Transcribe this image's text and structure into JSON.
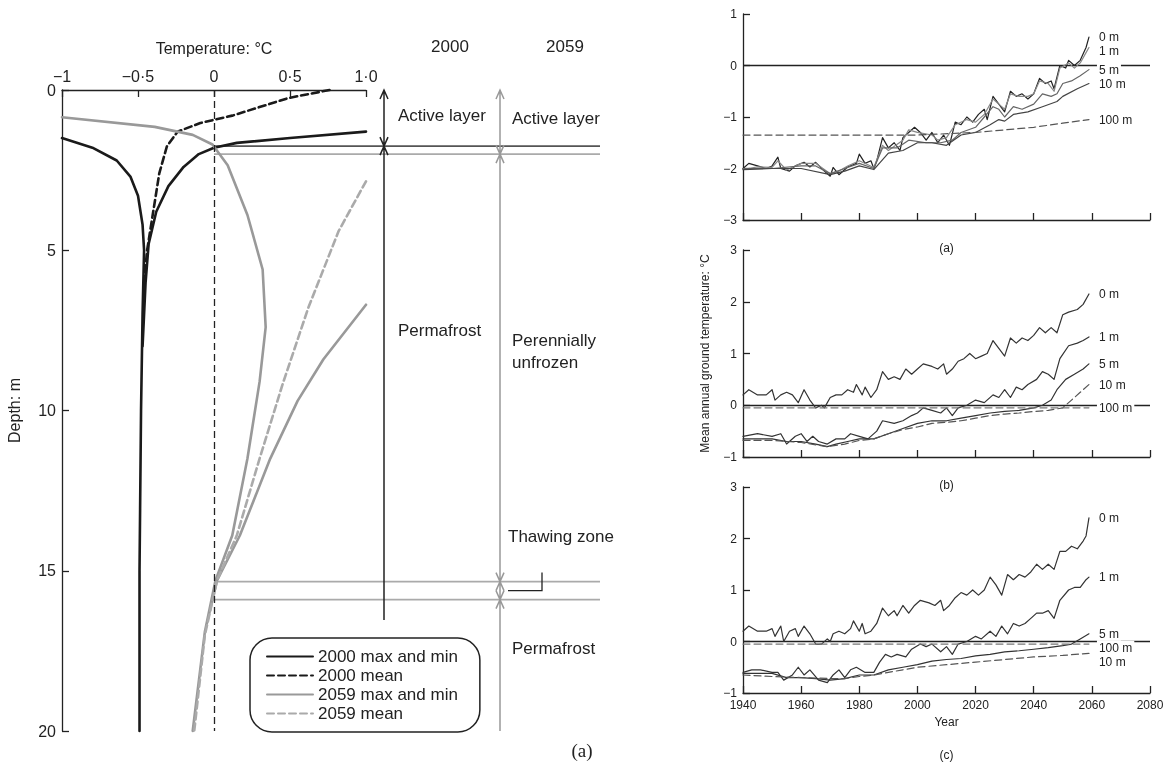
{
  "chart_data": [
    {
      "type": "line",
      "xlabel": "Temperature: °C",
      "ylabel": "Depth: m",
      "xlim": [
        -1,
        1
      ],
      "xticks": [
        {
          "value": -1,
          "label": "−1"
        },
        {
          "value": -0.5,
          "label": "−0·5"
        },
        0,
        {
          "value": 0.5,
          "label": "0·5"
        },
        {
          "value": 1,
          "label": "1·0"
        }
      ],
      "ylim": [
        20,
        0
      ],
      "yticks": [
        0,
        5,
        10,
        15,
        20
      ],
      "grid": false,
      "legend": "bottom right",
      "marker": "none",
      "series": [
        {
          "name": "2000 max and min",
          "color": "#1a1a1a",
          "line_style": "solid",
          "x": [
            -1,
            -0.8,
            -0.64,
            -0.55,
            -0.5,
            -0.47,
            -0.46,
            -0.47,
            -0.48,
            -0.49,
            -0.49,
            null,
            1,
            0.5,
            0.15,
            0,
            -0.1,
            -0.2,
            -0.3,
            -0.38,
            -0.43,
            -0.45,
            -0.47
          ],
          "values": [
            1.5,
            1.8,
            2.2,
            2.7,
            3.3,
            4.2,
            5,
            7,
            10,
            15,
            20,
            null,
            1.3,
            1.5,
            1.65,
            1.8,
            2.0,
            2.4,
            3.0,
            3.8,
            4.8,
            6,
            8
          ]
        },
        {
          "name": "2000 mean",
          "color": "#1a1a1a",
          "line_style": "dashed",
          "x": [
            0.76,
            0.49,
            0.12,
            -0.09,
            -0.24,
            -0.31,
            -0.36,
            -0.4,
            -0.44,
            -0.46
          ],
          "values": [
            0,
            0.25,
            0.8,
            1.03,
            1.3,
            1.76,
            2.6,
            3.8,
            5,
            6
          ]
        },
        {
          "name": "2059 max and min",
          "color": "#999999",
          "line_style": "solid",
          "x": [
            -1,
            -0.39,
            -0.14,
            -0.01,
            0.09,
            0.22,
            0.32,
            0.34,
            0.3,
            0.22,
            0.12,
            0.01,
            -0.06,
            -0.14,
            null,
            1,
            0.72,
            0.55,
            0.37,
            0.17,
            0.02,
            -0.06,
            -0.14
          ],
          "values": [
            0.85,
            1.15,
            1.4,
            1.7,
            2.35,
            3.9,
            5.6,
            7.4,
            9.1,
            11.5,
            13.9,
            15.3,
            16.9,
            20,
            null,
            6.7,
            8.4,
            9.7,
            11.5,
            13.9,
            15.3,
            16.9,
            20
          ]
        },
        {
          "name": "2059 mean",
          "color": "#aaaaaa",
          "line_style": "dashed",
          "x": [
            1,
            0.82,
            0.62,
            0.45,
            0.3,
            0.15,
            0.02,
            -0.06,
            -0.13
          ],
          "values": [
            2.85,
            4.4,
            6.8,
            9.2,
            11.5,
            13.9,
            15.3,
            17,
            20
          ]
        }
      ],
      "ref_lines": [
        {
          "axis": "x",
          "value": 0,
          "color": "#222222",
          "line_style": "dashed"
        },
        {
          "axis": "y",
          "value": 1.75,
          "color": "#555555"
        },
        {
          "axis": "y",
          "value": 2.0,
          "color": "#aaaaaa"
        },
        {
          "axis": "y",
          "value": 15.34,
          "color": "#aaaaaa"
        },
        {
          "axis": "y",
          "value": 15.9,
          "color": "#aaaaaa"
        }
      ],
      "annotations": [
        "2000",
        "2059",
        "Active layer",
        "Active layer",
        "Permafrost",
        "Perennially unfrozen",
        "Thawing zone",
        "Permafrost",
        "(a)"
      ]
    },
    {
      "type": "line",
      "xlim": [
        1940,
        2080
      ],
      "xticks": [
        1940,
        1960,
        1980,
        2000,
        2020,
        2040,
        2060,
        2080
      ],
      "ylim": [
        -3,
        1
      ],
      "yticks": [
        {
          "value": -3,
          "label": "−3"
        },
        {
          "value": -2,
          "label": "−2"
        },
        {
          "value": -1,
          "label": "−1"
        },
        0,
        1
      ],
      "tick_labels": "y",
      "grid": false,
      "marker": "none",
      "series": [
        {
          "name": "0 m",
          "color": "#222222",
          "line_style": "solid",
          "x": [
            1940,
            1942,
            1945,
            1948,
            1950,
            1952,
            1953,
            1956,
            1958,
            1961,
            1963,
            1965,
            1968,
            1970,
            1971,
            1973,
            1976,
            1979,
            1980,
            1982,
            1984,
            1985,
            1986,
            1988,
            1990,
            1992,
            1994,
            1995,
            1997,
            1999,
            2001,
            2003,
            2005,
            2007,
            2009,
            2011,
            2013,
            2015,
            2017,
            2019,
            2021,
            2023,
            2024,
            2026,
            2028,
            2030,
            2032,
            2034,
            2036,
            2038,
            2040,
            2042,
            2044,
            2046,
            2047,
            2049,
            2051,
            2052,
            2054,
            2056,
            2058,
            2059
          ],
          "values": [
            -2.0,
            -1.9,
            -1.95,
            -2.0,
            -1.95,
            -1.78,
            -2.0,
            -2.05,
            -1.95,
            -1.88,
            -1.97,
            -1.88,
            -2.05,
            -2.15,
            -1.98,
            -2.12,
            -1.97,
            -1.9,
            -1.72,
            -1.9,
            -1.85,
            -2.0,
            -1.85,
            -1.4,
            -1.6,
            -1.5,
            -1.65,
            -1.4,
            -1.3,
            -1.2,
            -1.3,
            -1.45,
            -1.3,
            -1.5,
            -1.35,
            -1.55,
            -1.1,
            -1.15,
            -1.0,
            -1.1,
            -0.95,
            -0.85,
            -1.05,
            -0.6,
            -0.75,
            -0.9,
            -0.5,
            -0.6,
            -0.55,
            -0.65,
            -0.55,
            -0.25,
            -0.35,
            -0.3,
            -0.45,
            0.0,
            -0.05,
            0.1,
            0.0,
            0.1,
            0.35,
            0.55
          ]
        },
        {
          "name": "1 m",
          "color": "#888888",
          "line_style": "solid",
          "x": [
            1940,
            1945,
            1950,
            1952,
            1955,
            1960,
            1965,
            1970,
            1973,
            1976,
            1980,
            1985,
            1988,
            1990,
            1995,
            1997,
            2000,
            2005,
            2007,
            2010,
            2013,
            2017,
            2020,
            2023,
            2026,
            2028,
            2030,
            2032,
            2035,
            2038,
            2040,
            2042,
            2045,
            2047,
            2049,
            2052,
            2054,
            2056,
            2058,
            2059
          ],
          "values": [
            -2.02,
            -1.97,
            -1.98,
            -1.85,
            -2.03,
            -1.9,
            -1.9,
            -2.1,
            -2.05,
            -1.95,
            -1.85,
            -1.98,
            -1.55,
            -1.65,
            -1.45,
            -1.25,
            -1.3,
            -1.35,
            -1.45,
            -1.4,
            -1.15,
            -1.05,
            -1.1,
            -0.95,
            -0.65,
            -0.75,
            -0.85,
            -0.55,
            -0.6,
            -0.6,
            -0.55,
            -0.3,
            -0.35,
            -0.5,
            -0.05,
            0.05,
            -0.05,
            0.05,
            0.25,
            0.35
          ]
        },
        {
          "name": "5 m",
          "color": "#666666",
          "line_style": "solid",
          "x": [
            1940,
            1950,
            1960,
            1965,
            1970,
            1975,
            1980,
            1985,
            1988,
            1993,
            1997,
            2003,
            2008,
            2012,
            2015,
            2020,
            2023,
            2026,
            2028,
            2030,
            2033,
            2036,
            2040,
            2043,
            2046,
            2048,
            2050,
            2053,
            2056,
            2059
          ],
          "values": [
            -2.0,
            -2.0,
            -1.95,
            -1.95,
            -2.1,
            -2.0,
            -1.9,
            -2.0,
            -1.6,
            -1.6,
            -1.45,
            -1.5,
            -1.5,
            -1.45,
            -1.3,
            -1.2,
            -1.0,
            -0.8,
            -0.85,
            -1.0,
            -0.8,
            -0.85,
            -0.75,
            -0.55,
            -0.6,
            -0.55,
            -0.35,
            -0.3,
            -0.2,
            -0.08
          ]
        },
        {
          "name": "10 m",
          "color": "#444444",
          "line_style": "solid",
          "x": [
            1940,
            1950,
            1960,
            1970,
            1975,
            1980,
            1985,
            1990,
            1995,
            2000,
            2005,
            2010,
            2015,
            2020,
            2025,
            2028,
            2030,
            2033,
            2038,
            2043,
            2048,
            2050,
            2055,
            2059
          ],
          "values": [
            -2.02,
            -2.0,
            -2.0,
            -2.12,
            -2.05,
            -1.95,
            -2.02,
            -1.7,
            -1.65,
            -1.5,
            -1.5,
            -1.55,
            -1.35,
            -1.3,
            -1.15,
            -1.05,
            -1.08,
            -0.95,
            -0.9,
            -0.8,
            -0.7,
            -0.6,
            -0.45,
            -0.35
          ]
        },
        {
          "name": "100 m",
          "color": "#555555",
          "line_style": "dashed",
          "x": [
            1940,
            1960,
            1980,
            2000,
            2020,
            2030,
            2040,
            2050,
            2059
          ],
          "values": [
            -1.35,
            -1.35,
            -1.35,
            -1.35,
            -1.3,
            -1.25,
            -1.2,
            -1.12,
            -1.05
          ]
        }
      ],
      "ref_lines": [
        {
          "axis": "y",
          "value": 0,
          "color": "#222222"
        }
      ],
      "annotations": [
        "(a)"
      ]
    },
    {
      "type": "line",
      "ylabel": "Mean annual ground temperature: °C",
      "xlim": [
        1940,
        2080
      ],
      "xticks": [
        1940,
        1960,
        1980,
        2000,
        2020,
        2040,
        2060,
        2080
      ],
      "ylim": [
        -1,
        3
      ],
      "yticks": [
        {
          "value": -1,
          "label": "−1"
        },
        0,
        1,
        2,
        3
      ],
      "tick_labels": "y",
      "grid": false,
      "marker": "none",
      "series": [
        {
          "name": "0 m",
          "color": "#333333",
          "line_style": "solid",
          "x": [
            1940,
            1942,
            1945,
            1948,
            1950,
            1951,
            1953,
            1955,
            1957,
            1959,
            1961,
            1963,
            1965,
            1967,
            1968,
            1970,
            1972,
            1974,
            1976,
            1978,
            1979,
            1981,
            1982,
            1984,
            1986,
            1988,
            1990,
            1992,
            1994,
            1996,
            1998,
            2000,
            2002,
            2005,
            2007,
            2009,
            2010,
            2012,
            2014,
            2016,
            2018,
            2020,
            2022,
            2024,
            2026,
            2028,
            2030,
            2032,
            2034,
            2036,
            2038,
            2040,
            2042,
            2044,
            2046,
            2048,
            2050,
            2052,
            2055,
            2057,
            2059
          ],
          "values": [
            0.2,
            0.3,
            0.2,
            0.2,
            0.3,
            0.1,
            0.2,
            0.25,
            0.2,
            0.05,
            0.3,
            0.1,
            -0.05,
            0.0,
            -0.05,
            0.15,
            0.2,
            0.2,
            0.3,
            0.25,
            0.4,
            0.2,
            0.35,
            0.15,
            0.3,
            0.65,
            0.5,
            0.55,
            0.5,
            0.7,
            0.6,
            0.7,
            0.8,
            0.75,
            0.7,
            0.8,
            0.6,
            0.7,
            0.85,
            0.9,
            1.0,
            0.9,
            0.95,
            1.0,
            1.25,
            1.1,
            0.95,
            1.3,
            1.2,
            1.3,
            1.25,
            1.35,
            1.5,
            1.4,
            1.5,
            1.4,
            1.75,
            1.8,
            1.85,
            1.95,
            2.15
          ]
        },
        {
          "name": "1 m",
          "color": "#333333",
          "line_style": "solid",
          "x": [
            1940,
            1945,
            1950,
            1953,
            1955,
            1958,
            1960,
            1962,
            1964,
            1966,
            1969,
            1972,
            1975,
            1977,
            1980,
            1983,
            1986,
            1988,
            1992,
            1995,
            1998,
            2000,
            2002,
            2005,
            2008,
            2010,
            2012,
            2014,
            2017,
            2020,
            2023,
            2026,
            2028,
            2030,
            2032,
            2034,
            2036,
            2038,
            2041,
            2043,
            2045,
            2047,
            2049,
            2052,
            2055,
            2057,
            2059
          ],
          "values": [
            -0.6,
            -0.55,
            -0.6,
            -0.55,
            -0.75,
            -0.6,
            -0.55,
            -0.7,
            -0.6,
            -0.7,
            -0.75,
            -0.65,
            -0.65,
            -0.55,
            -0.6,
            -0.65,
            -0.5,
            -0.3,
            -0.35,
            -0.3,
            -0.2,
            -0.15,
            -0.05,
            -0.1,
            -0.15,
            -0.05,
            -0.2,
            -0.05,
            0.0,
            0.1,
            0.05,
            0.2,
            0.15,
            0.3,
            0.15,
            0.35,
            0.3,
            0.4,
            0.5,
            0.65,
            0.6,
            0.5,
            0.9,
            1.15,
            1.2,
            1.25,
            1.32
          ]
        },
        {
          "name": "5 m",
          "color": "#333333",
          "line_style": "solid",
          "x": [
            1940,
            1950,
            1955,
            1960,
            1965,
            1969,
            1972,
            1976,
            1980,
            1985,
            1990,
            1995,
            2000,
            2005,
            2010,
            2015,
            2020,
            2025,
            2030,
            2035,
            2040,
            2043,
            2046,
            2048,
            2051,
            2054,
            2057,
            2059
          ],
          "values": [
            -0.65,
            -0.65,
            -0.7,
            -0.7,
            -0.75,
            -0.8,
            -0.75,
            -0.7,
            -0.65,
            -0.65,
            -0.55,
            -0.45,
            -0.35,
            -0.3,
            -0.3,
            -0.25,
            -0.2,
            -0.15,
            -0.12,
            -0.1,
            -0.05,
            0.0,
            0.1,
            0.3,
            0.5,
            0.6,
            0.7,
            0.8
          ]
        },
        {
          "name": "10 m",
          "color": "#555555",
          "line_style": "dashed",
          "x": [
            1940,
            1950,
            1960,
            1969,
            1975,
            1980,
            1985,
            1990,
            1995,
            2000,
            2005,
            2010,
            2015,
            2020,
            2025,
            2030,
            2035,
            2040,
            2045,
            2050,
            2053,
            2056,
            2059
          ],
          "values": [
            -0.68,
            -0.68,
            -0.72,
            -0.8,
            -0.75,
            -0.68,
            -0.65,
            -0.55,
            -0.47,
            -0.42,
            -0.35,
            -0.33,
            -0.3,
            -0.25,
            -0.2,
            -0.17,
            -0.15,
            -0.12,
            -0.1,
            -0.05,
            0.1,
            0.25,
            0.4
          ]
        },
        {
          "name": "100 m",
          "color": "#777777",
          "line_style": "dashed",
          "x": [
            1940,
            2000,
            2059
          ],
          "values": [
            -0.05,
            -0.05,
            -0.05
          ]
        }
      ],
      "ref_lines": [
        {
          "axis": "y",
          "value": 0,
          "color": "#222222"
        }
      ],
      "annotations": [
        "(b)"
      ]
    },
    {
      "type": "line",
      "xlabel": "Year",
      "xlim": [
        1940,
        2080
      ],
      "xticks": [
        1940,
        1960,
        1980,
        2000,
        2020,
        2040,
        2060,
        2080
      ],
      "ylim": [
        -1,
        3
      ],
      "yticks": [
        {
          "value": -1,
          "label": "−1"
        },
        0,
        1,
        2,
        3
      ],
      "grid": false,
      "marker": "none",
      "series": [
        {
          "name": "0 m",
          "color": "#333333",
          "line_style": "solid",
          "x": [
            1940,
            1942,
            1945,
            1948,
            1950,
            1951,
            1953,
            1954,
            1956,
            1958,
            1959,
            1961,
            1963,
            1965,
            1967,
            1969,
            1970,
            1971,
            1973,
            1975,
            1977,
            1978,
            1980,
            1981,
            1982,
            1984,
            1986,
            1988,
            1990,
            1992,
            1993,
            1995,
            1997,
            1999,
            2001,
            2004,
            2006,
            2008,
            2009,
            2011,
            2013,
            2015,
            2017,
            2019,
            2021,
            2023,
            2025,
            2027,
            2029,
            2031,
            2033,
            2035,
            2037,
            2039,
            2041,
            2043,
            2045,
            2047,
            2049,
            2051,
            2053,
            2055,
            2057,
            2058,
            2059
          ],
          "values": [
            0.2,
            0.3,
            0.2,
            0.2,
            0.25,
            0.1,
            0.3,
            0.0,
            0.2,
            0.25,
            0.1,
            0.3,
            0.15,
            -0.05,
            -0.05,
            0.05,
            0.0,
            0.15,
            0.2,
            0.15,
            0.25,
            0.4,
            0.2,
            0.35,
            0.15,
            0.2,
            0.35,
            0.65,
            0.5,
            0.6,
            0.5,
            0.7,
            0.55,
            0.7,
            0.8,
            0.75,
            0.7,
            0.8,
            0.6,
            0.7,
            0.85,
            0.95,
            0.9,
            1.0,
            0.9,
            1.0,
            1.25,
            1.1,
            0.9,
            1.3,
            1.2,
            1.3,
            1.25,
            1.35,
            1.5,
            1.4,
            1.5,
            1.4,
            1.75,
            1.75,
            1.85,
            1.8,
            1.95,
            2.05,
            2.4
          ]
        },
        {
          "name": "1 m",
          "color": "#333333",
          "line_style": "solid",
          "x": [
            1940,
            1943,
            1946,
            1950,
            1952,
            1954,
            1957,
            1959,
            1961,
            1963,
            1966,
            1969,
            1971,
            1973,
            1975,
            1977,
            1979,
            1982,
            1985,
            1987,
            1989,
            1991,
            1993,
            1996,
            1998,
            2001,
            2003,
            2005,
            2008,
            2010,
            2012,
            2014,
            2017,
            2020,
            2022,
            2025,
            2027,
            2029,
            2031,
            2033,
            2035,
            2037,
            2039,
            2041,
            2043,
            2045,
            2047,
            2049,
            2052,
            2054,
            2056,
            2058,
            2059
          ],
          "values": [
            -0.6,
            -0.55,
            -0.55,
            -0.6,
            -0.6,
            -0.75,
            -0.65,
            -0.5,
            -0.65,
            -0.55,
            -0.75,
            -0.8,
            -0.65,
            -0.55,
            -0.7,
            -0.55,
            -0.5,
            -0.6,
            -0.6,
            -0.4,
            -0.25,
            -0.3,
            -0.25,
            -0.3,
            -0.15,
            -0.05,
            -0.1,
            -0.05,
            -0.2,
            -0.1,
            -0.25,
            -0.05,
            0.0,
            0.1,
            0.05,
            0.2,
            0.1,
            0.3,
            0.15,
            0.35,
            0.3,
            0.35,
            0.45,
            0.55,
            0.55,
            0.6,
            0.45,
            0.8,
            1.0,
            1.05,
            1.05,
            1.2,
            1.25
          ]
        },
        {
          "name": "5 m",
          "color": "#333333",
          "line_style": "solid",
          "x": [
            1940,
            1950,
            1955,
            1960,
            1965,
            1970,
            1975,
            1980,
            1985,
            1990,
            1995,
            2000,
            2005,
            2010,
            2015,
            2020,
            2025,
            2030,
            2035,
            2040,
            2045,
            2050,
            2053,
            2056,
            2059
          ],
          "values": [
            -0.62,
            -0.62,
            -0.7,
            -0.7,
            -0.72,
            -0.75,
            -0.72,
            -0.65,
            -0.65,
            -0.55,
            -0.5,
            -0.45,
            -0.38,
            -0.35,
            -0.33,
            -0.28,
            -0.25,
            -0.2,
            -0.18,
            -0.15,
            -0.12,
            -0.08,
            -0.05,
            0.05,
            0.15
          ]
        },
        {
          "name": "10 m",
          "color": "#555555",
          "line_style": "dashed",
          "x": [
            1940,
            1950,
            1960,
            1970,
            1975,
            1980,
            1985,
            1990,
            1995,
            2000,
            2010,
            2020,
            2030,
            2040,
            2050,
            2059
          ],
          "values": [
            -0.65,
            -0.68,
            -0.7,
            -0.72,
            -0.72,
            -0.68,
            -0.65,
            -0.6,
            -0.55,
            -0.5,
            -0.45,
            -0.4,
            -0.35,
            -0.3,
            -0.27,
            -0.23
          ]
        },
        {
          "name": "100 m",
          "color": "#777777",
          "line_style": "dashed",
          "x": [
            1940,
            2000,
            2059
          ],
          "values": [
            -0.05,
            -0.05,
            -0.05
          ]
        }
      ],
      "ref_lines": [
        {
          "axis": "y",
          "value": 0,
          "color": "#222222"
        }
      ],
      "annotations": [
        "(c)"
      ]
    }
  ]
}
